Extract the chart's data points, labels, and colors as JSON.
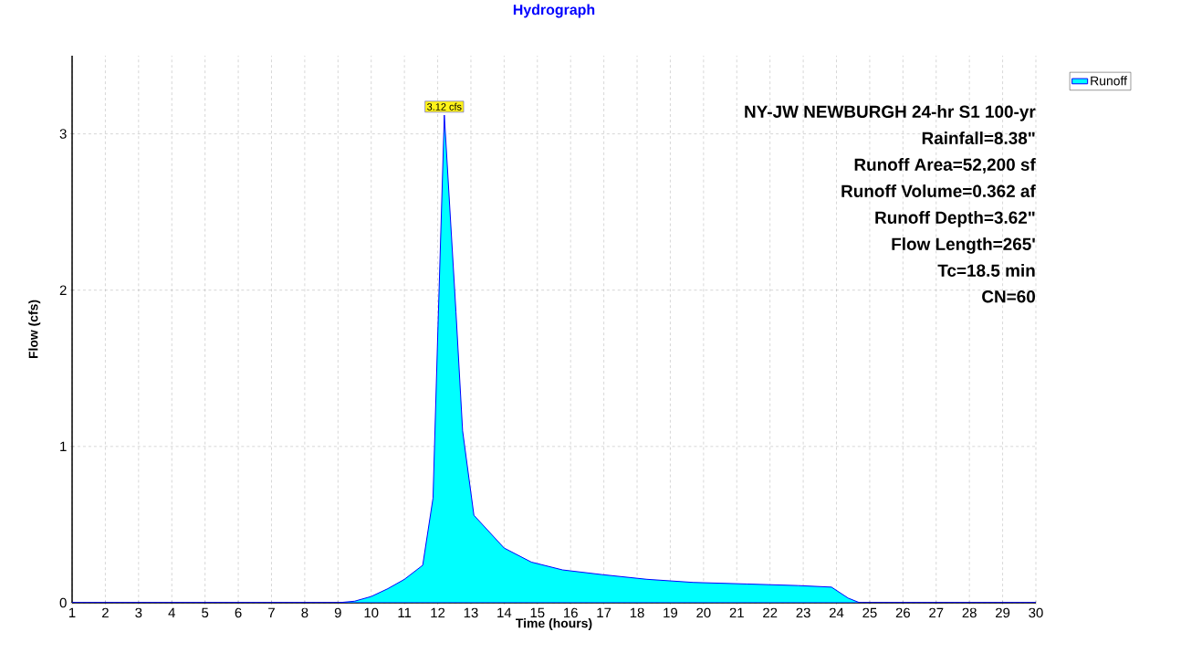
{
  "chart_data": {
    "type": "area",
    "title": "Hydrograph",
    "xlabel": "Time  (hours)",
    "ylabel": "Flow  (cfs)",
    "x": [
      1,
      9,
      9.5,
      10,
      10.5,
      11,
      11.55,
      11.86,
      12.0,
      12.2,
      12.55,
      12.75,
      13.09,
      14.0,
      14.82,
      15.76,
      16.95,
      18.3,
      19.7,
      21.3,
      22.85,
      23.85,
      24.35,
      24.7,
      30
    ],
    "series": [
      {
        "name": "Runoff",
        "color": "#00ffff",
        "values": [
          0,
          0,
          0.01,
          0.04,
          0.09,
          0.15,
          0.24,
          0.67,
          1.7,
          3.12,
          1.86,
          1.1,
          0.56,
          0.35,
          0.26,
          0.21,
          0.18,
          0.15,
          0.13,
          0.12,
          0.11,
          0.1,
          0.03,
          0,
          0
        ]
      }
    ],
    "xlim": [
      1,
      30
    ],
    "ylim": [
      0,
      3.5
    ],
    "xticks": [
      1,
      2,
      3,
      4,
      5,
      6,
      7,
      8,
      9,
      10,
      11,
      12,
      13,
      14,
      15,
      16,
      17,
      18,
      19,
      20,
      21,
      22,
      23,
      24,
      25,
      26,
      27,
      28,
      29,
      30
    ],
    "yticks": [
      0,
      1,
      2,
      3
    ],
    "grid": true,
    "legend": "top right",
    "annotations": [
      {
        "text": "3.12 cfs",
        "x": 12.2,
        "y": 3.12
      },
      "NY-JW NEWBURGH 24-hr S1 100-yr",
      "Rainfall=8.38\"",
      "Runoff Area=52,200 sf",
      "Runoff Volume=0.362 af",
      "Runoff Depth=3.62\"",
      "Flow Length=265'",
      "Tc=18.5 min",
      "CN=60"
    ]
  }
}
